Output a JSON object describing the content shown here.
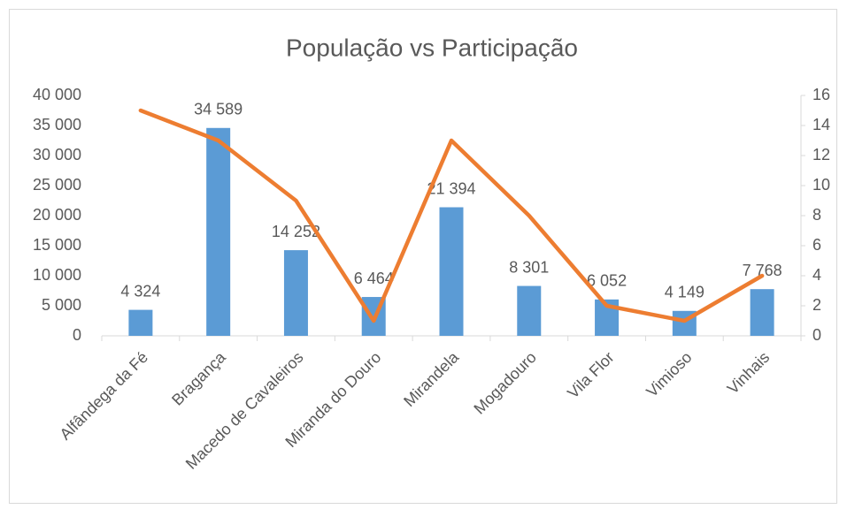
{
  "chart_data": {
    "type": "bar",
    "title": "População vs Participação",
    "categories": [
      "Alfândega da Fé",
      "Bragança",
      "Macedo de Cavaleiros",
      "Miranda do Douro",
      "Mirandela",
      "Mogadouro",
      "Vila Flor",
      "Vimioso",
      "Vinhais"
    ],
    "series": [
      {
        "type": "bar",
        "color": "#5b9bd5",
        "axis": "y",
        "values": [
          4324,
          34589,
          14252,
          6464,
          21394,
          8301,
          6052,
          4149,
          7768
        ],
        "value_labels": [
          "4 324",
          "34 589",
          "14 252",
          "6 464",
          "21 394",
          "8 301",
          "6 052",
          "4 149",
          "7 768"
        ]
      },
      {
        "type": "line",
        "color": "#ed7d31",
        "axis": "y2",
        "values": [
          15,
          13,
          9,
          1,
          13,
          8,
          2,
          1,
          4
        ]
      }
    ],
    "ylim": [
      0,
      40000
    ],
    "yticks": [
      0,
      {
        "value": 5000,
        "label": "5 000"
      },
      {
        "value": 10000,
        "label": "10 000"
      },
      {
        "value": 15000,
        "label": "15 000"
      },
      {
        "value": 20000,
        "label": "20 000"
      },
      {
        "value": 25000,
        "label": "25 000"
      },
      {
        "value": 30000,
        "label": "30 000"
      },
      {
        "value": 35000,
        "label": "35 000"
      },
      {
        "value": 40000,
        "label": "40 000"
      }
    ],
    "y2lim": [
      0,
      16
    ],
    "y2ticks": [
      0,
      2,
      4,
      6,
      8,
      10,
      12,
      14,
      16
    ],
    "grid": false
  }
}
